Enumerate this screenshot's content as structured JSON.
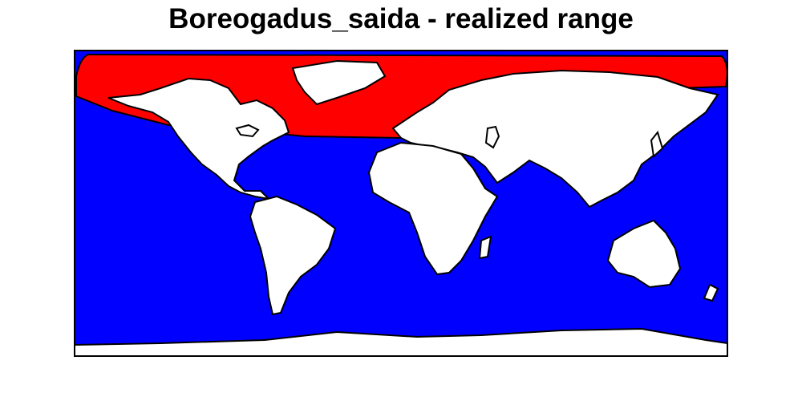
{
  "title": "Boreogadus_saida - realized range",
  "map": {
    "projection": "equirectangular world map",
    "colors": {
      "ocean": "#0000ff",
      "land": "#ffffff",
      "realized_range": "#ff0000",
      "outline": "#000000"
    },
    "range_region": "Arctic / sub-Arctic North Atlantic and Arctic Ocean band",
    "legend": "none"
  }
}
